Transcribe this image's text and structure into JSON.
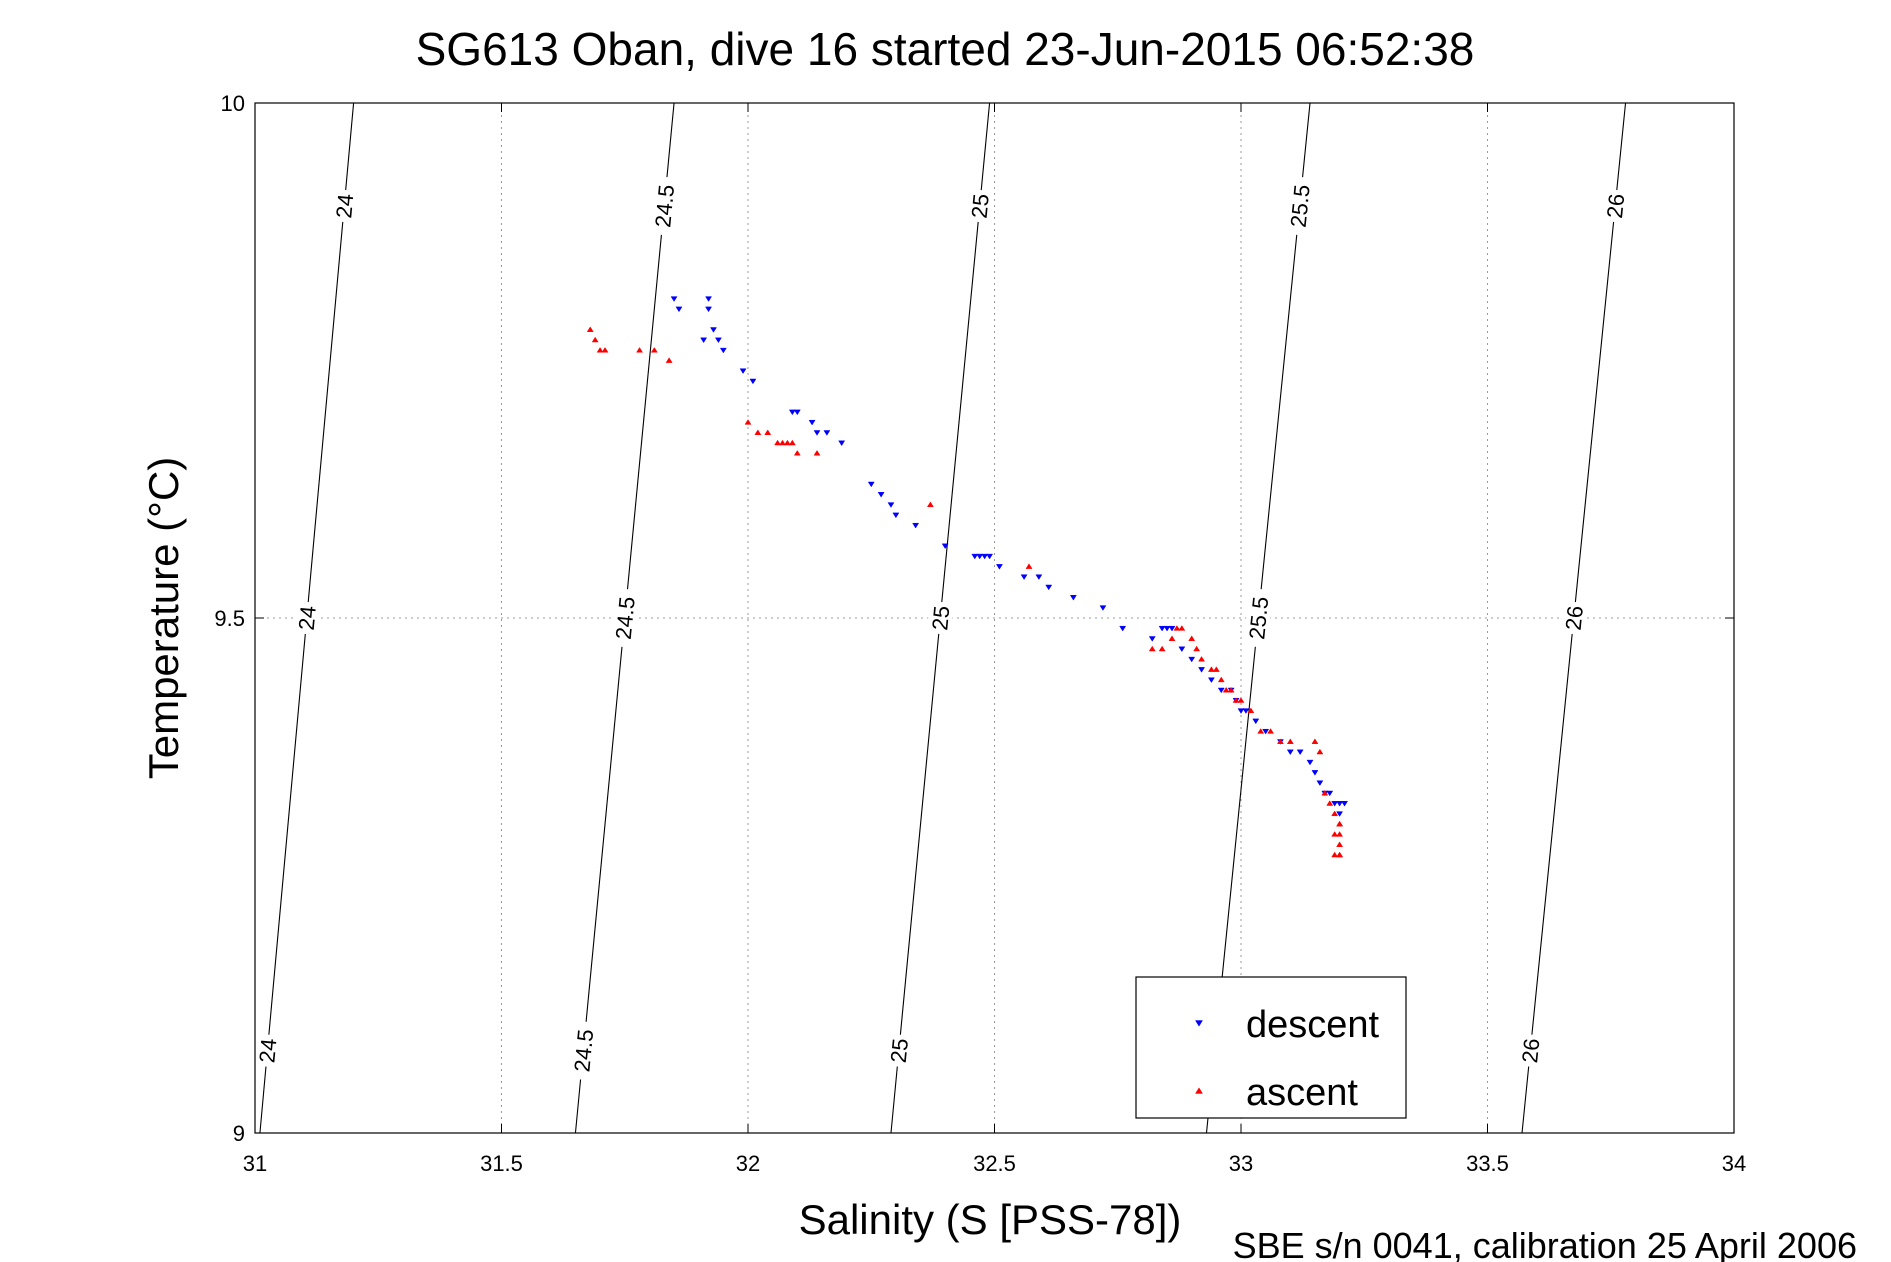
{
  "chart_data": {
    "type": "scatter",
    "title": "SG613 Oban, dive 16 started 23-Jun-2015 06:52:38",
    "xlabel": "Salinity (S [PSS-78])",
    "ylabel": "Temperature (°C)",
    "footnote": "SBE s/n 0041, calibration 25 April 2006",
    "xlim": [
      31,
      34
    ],
    "ylim": [
      9,
      10
    ],
    "xticks": [
      "31",
      "31.5",
      "32",
      "32.5",
      "33",
      "33.5",
      "34"
    ],
    "yticks": [
      "9",
      "9.5",
      "10"
    ],
    "grid": true,
    "legend_position": "bottom-right",
    "isopycnals": [
      {
        "label": "24",
        "s_at_t9": 31.01,
        "s_at_t10": 31.2
      },
      {
        "label": "24.5",
        "s_at_t9": 31.65,
        "s_at_t10": 31.85
      },
      {
        "label": "25",
        "s_at_t9": 32.29,
        "s_at_t10": 32.49
      },
      {
        "label": "25.5",
        "s_at_t9": 32.93,
        "s_at_t10": 33.14
      },
      {
        "label": "26",
        "s_at_t9": 33.57,
        "s_at_t10": 33.78
      }
    ],
    "series": [
      {
        "name": "descent",
        "color": "#0000ff",
        "marker": "triangle-down",
        "x": [
          31.85,
          31.86,
          31.92,
          31.92,
          31.93,
          31.94,
          31.95,
          31.91,
          31.99,
          32.01,
          32.09,
          32.1,
          32.13,
          32.14,
          32.16,
          32.19,
          32.25,
          32.27,
          32.29,
          32.3,
          32.34,
          32.4,
          32.46,
          32.47,
          32.48,
          32.49,
          32.51,
          32.56,
          32.59,
          32.61,
          32.66,
          32.72,
          32.76,
          32.82,
          32.84,
          32.85,
          32.86,
          32.88,
          32.9,
          32.92,
          32.94,
          32.96,
          32.98,
          32.99,
          33.0,
          33.01,
          33.03,
          33.05,
          33.08,
          33.1,
          33.12,
          33.14,
          33.15,
          33.16,
          33.17,
          33.18,
          33.19,
          33.2,
          33.2,
          33.21
        ],
        "y": [
          9.81,
          9.8,
          9.81,
          9.8,
          9.78,
          9.77,
          9.76,
          9.77,
          9.74,
          9.73,
          9.7,
          9.7,
          9.69,
          9.68,
          9.68,
          9.67,
          9.63,
          9.62,
          9.61,
          9.6,
          9.59,
          9.57,
          9.56,
          9.56,
          9.56,
          9.56,
          9.55,
          9.54,
          9.54,
          9.53,
          9.52,
          9.51,
          9.49,
          9.48,
          9.49,
          9.49,
          9.49,
          9.47,
          9.46,
          9.45,
          9.44,
          9.43,
          9.43,
          9.42,
          9.41,
          9.41,
          9.4,
          9.39,
          9.38,
          9.37,
          9.37,
          9.36,
          9.35,
          9.34,
          9.33,
          9.33,
          9.32,
          9.32,
          9.31,
          9.32
        ]
      },
      {
        "name": "ascent",
        "color": "#ff0000",
        "marker": "triangle-up",
        "x": [
          31.68,
          31.69,
          31.7,
          31.71,
          31.78,
          31.81,
          31.84,
          32.0,
          32.02,
          32.04,
          32.06,
          32.07,
          32.08,
          32.09,
          32.1,
          32.14,
          32.37,
          32.57,
          32.82,
          32.84,
          32.86,
          32.87,
          32.88,
          32.9,
          32.91,
          32.92,
          32.94,
          32.95,
          32.96,
          32.97,
          32.98,
          32.99,
          33.0,
          33.02,
          33.04,
          33.06,
          33.08,
          33.1,
          33.15,
          33.16,
          33.17,
          33.18,
          33.19,
          33.2,
          33.2,
          33.2,
          33.19,
          33.2,
          33.2,
          33.19,
          33.2
        ],
        "y": [
          9.78,
          9.77,
          9.76,
          9.76,
          9.76,
          9.76,
          9.75,
          9.69,
          9.68,
          9.68,
          9.67,
          9.67,
          9.67,
          9.67,
          9.66,
          9.66,
          9.61,
          9.55,
          9.47,
          9.47,
          9.48,
          9.49,
          9.49,
          9.48,
          9.47,
          9.46,
          9.45,
          9.45,
          9.44,
          9.43,
          9.43,
          9.42,
          9.42,
          9.41,
          9.39,
          9.39,
          9.38,
          9.38,
          9.38,
          9.37,
          9.33,
          9.32,
          9.31,
          9.3,
          9.3,
          9.29,
          9.29,
          9.28,
          9.27,
          9.27,
          9.27
        ]
      }
    ]
  }
}
